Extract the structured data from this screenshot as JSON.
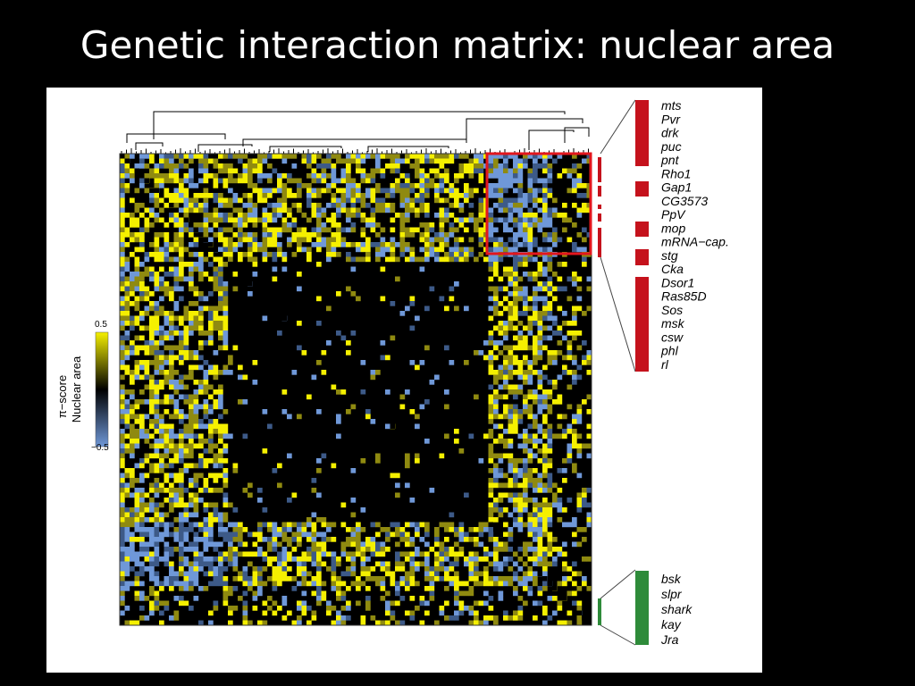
{
  "slide": {
    "title": "Genetic interaction matrix: nuclear area"
  },
  "colorbar": {
    "label_line1": "π−score",
    "label_line2": "Nuclear area",
    "max_label": "0.5",
    "min_label": "−0.5",
    "colors": {
      "high": "#f5f000",
      "mid": "#000000",
      "low": "#6f98d8"
    }
  },
  "colors": {
    "red_cluster": "#c5121c",
    "green_cluster": "#2e8b3a",
    "highlight_box": "#e3161d"
  },
  "red_cluster_genes": [
    "mts",
    "Pvr",
    "drk",
    "puc",
    "pnt",
    "Rho1",
    "Gap1",
    "CG3573",
    "PpV",
    "mop",
    "mRNA−cap.",
    "stg",
    "Cka",
    "Dsor1",
    "Ras85D",
    "Sos",
    "msk",
    "csw",
    "phl",
    "rl"
  ],
  "green_cluster_genes": [
    "bsk",
    "slpr",
    "shark",
    "kay",
    "Jra"
  ]
}
